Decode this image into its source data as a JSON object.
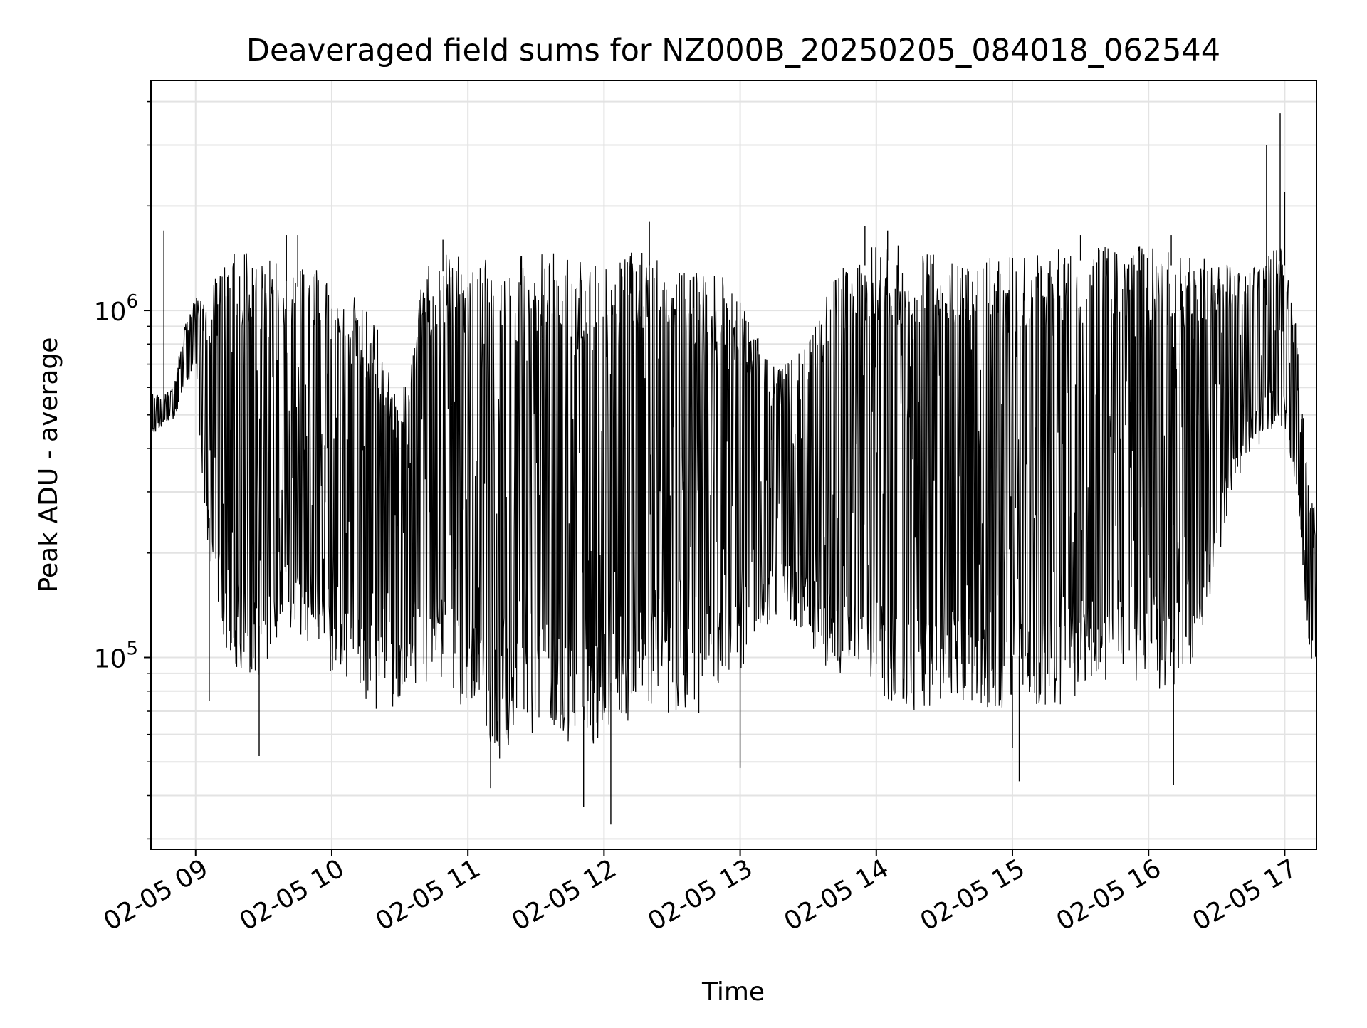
{
  "chart_data": {
    "type": "line",
    "title": "Deaveraged field sums for NZ000B_20250205_084018_062544",
    "xlabel": "Time",
    "ylabel": "Peak ADU - average",
    "x_range": [
      "2025-02-05T08:40:18",
      "2025-02-05T17:14:00"
    ],
    "y_range": [
      28000,
      4600000
    ],
    "y_scale": "log",
    "grid": true,
    "line_color": "#000000",
    "x_tick_labels": [
      {
        "t": "2025-02-05T09:00",
        "label": "02-05 09"
      },
      {
        "t": "2025-02-05T10:00",
        "label": "02-05 10"
      },
      {
        "t": "2025-02-05T11:00",
        "label": "02-05 11"
      },
      {
        "t": "2025-02-05T12:00",
        "label": "02-05 12"
      },
      {
        "t": "2025-02-05T13:00",
        "label": "02-05 13"
      },
      {
        "t": "2025-02-05T14:00",
        "label": "02-05 14"
      },
      {
        "t": "2025-02-05T15:00",
        "label": "02-05 15"
      },
      {
        "t": "2025-02-05T16:00",
        "label": "02-05 16"
      },
      {
        "t": "2025-02-05T17:00",
        "label": "02-05 17"
      }
    ],
    "y_major_ticks": [
      {
        "value": 100000,
        "base": "10",
        "exp": "5"
      },
      {
        "value": 1000000,
        "base": "10",
        "exp": "6"
      }
    ],
    "series": [
      {
        "x": [
          "08:40",
          "08:45",
          "08:50",
          "08:55",
          "09:00",
          "09:05",
          "09:10",
          "09:15",
          "09:20",
          "09:25",
          "09:30",
          "09:35",
          "09:40",
          "09:45",
          "09:50",
          "09:55",
          "10:00",
          "10:05",
          "10:10",
          "10:15",
          "10:20",
          "10:25",
          "10:30",
          "10:35",
          "10:40",
          "10:45",
          "10:50",
          "10:55",
          "11:00",
          "11:05",
          "11:10",
          "11:15",
          "11:20",
          "11:25",
          "11:30",
          "11:35",
          "11:40",
          "11:45",
          "11:50",
          "11:55",
          "12:00",
          "12:05",
          "12:10",
          "12:15",
          "12:20",
          "12:25",
          "12:30",
          "12:35",
          "12:40",
          "12:45",
          "12:50",
          "12:55",
          "13:00",
          "13:05",
          "13:10",
          "13:15",
          "13:20",
          "13:25",
          "13:30",
          "13:35",
          "13:40",
          "13:45",
          "13:50",
          "13:55",
          "14:00",
          "14:05",
          "14:10",
          "14:15",
          "14:20",
          "14:25",
          "14:30",
          "14:35",
          "14:40",
          "14:45",
          "14:50",
          "14:55",
          "15:00",
          "15:05",
          "15:10",
          "15:15",
          "15:20",
          "15:25",
          "15:30",
          "15:35",
          "15:40",
          "15:45",
          "15:50",
          "15:55",
          "16:00",
          "16:05",
          "16:10",
          "16:15",
          "16:20",
          "16:25",
          "16:30",
          "16:35",
          "16:40",
          "16:45",
          "16:50",
          "16:55",
          "17:00",
          "17:05",
          "17:10",
          "17:14"
        ],
        "low": [
          430000,
          460000,
          480000,
          560000,
          680000,
          200000,
          120000,
          100000,
          90000,
          85000,
          90000,
          100000,
          110000,
          110000,
          105000,
          100000,
          90000,
          85000,
          80000,
          75000,
          70000,
          68000,
          72000,
          80000,
          85000,
          85000,
          80000,
          75000,
          70000,
          60000,
          55000,
          50000,
          52000,
          55000,
          60000,
          62000,
          60000,
          55000,
          52000,
          50000,
          58000,
          62000,
          65000,
          70000,
          72000,
          70000,
          68000,
          65000,
          65000,
          70000,
          75000,
          80000,
          90000,
          110000,
          120000,
          130000,
          130000,
          120000,
          110000,
          100000,
          90000,
          85000,
          82000,
          78000,
          78000,
          75000,
          72000,
          70000,
          70000,
          72000,
          75000,
          75000,
          75000,
          72000,
          70000,
          70000,
          72000,
          72000,
          70000,
          70000,
          72000,
          75000,
          78000,
          80000,
          82000,
          85000,
          85000,
          85000,
          82000,
          80000,
          80000,
          85000,
          100000,
          130000,
          180000,
          250000,
          320000,
          380000,
          420000,
          450000,
          450000,
          300000,
          120000,
          80000
        ],
        "high": [
          600000,
          560000,
          600000,
          900000,
          1100000,
          1100000,
          1300000,
          1450000,
          1500000,
          1500000,
          1450000,
          1400000,
          1350000,
          1300000,
          1350000,
          1300000,
          1250000,
          1200000,
          1100000,
          1000000,
          900000,
          700000,
          500000,
          900000,
          1300000,
          1400000,
          1450000,
          1450000,
          1450000,
          1400000,
          1400000,
          1450000,
          1450000,
          1450000,
          1450000,
          1500000,
          1500000,
          1450000,
          1450000,
          1400000,
          1450000,
          1400000,
          1450000,
          1500000,
          1500000,
          1450000,
          1400000,
          1300000,
          1300000,
          1350000,
          1300000,
          1200000,
          1100000,
          900000,
          800000,
          700000,
          700000,
          750000,
          800000,
          1000000,
          1200000,
          1350000,
          1450000,
          1500000,
          1550000,
          1550000,
          1550000,
          1500000,
          1500000,
          1500000,
          1500000,
          1500000,
          1500000,
          1450000,
          1450000,
          1450000,
          1450000,
          1450000,
          1450000,
          1500000,
          1500000,
          1500000,
          1550000,
          1550000,
          1550000,
          1550000,
          1550000,
          1550000,
          1550000,
          1500000,
          1500000,
          1500000,
          1500000,
          1450000,
          1400000,
          1350000,
          1300000,
          1300000,
          1400000,
          1600000,
          1500000,
          900000,
          350000,
          250000
        ]
      }
    ],
    "spikes": [
      {
        "t": "08:46",
        "value": 1700000
      },
      {
        "t": "09:06",
        "value": 75000
      },
      {
        "t": "09:28",
        "value": 52000
      },
      {
        "t": "09:40",
        "value": 1650000
      },
      {
        "t": "09:45",
        "value": 1650000
      },
      {
        "t": "10:49",
        "value": 1600000
      },
      {
        "t": "11:10",
        "value": 42000
      },
      {
        "t": "11:51",
        "value": 37000
      },
      {
        "t": "12:03",
        "value": 33000
      },
      {
        "t": "12:20",
        "value": 1800000
      },
      {
        "t": "13:00",
        "value": 48000
      },
      {
        "t": "13:55",
        "value": 1750000
      },
      {
        "t": "14:05",
        "value": 1700000
      },
      {
        "t": "15:00",
        "value": 55000
      },
      {
        "t": "15:03",
        "value": 44000
      },
      {
        "t": "15:30",
        "value": 1650000
      },
      {
        "t": "16:10",
        "value": 1650000
      },
      {
        "t": "16:11",
        "value": 43000
      },
      {
        "t": "16:52",
        "value": 3000000
      },
      {
        "t": "16:58",
        "value": 3700000
      },
      {
        "t": "17:00",
        "value": 2200000
      }
    ]
  }
}
